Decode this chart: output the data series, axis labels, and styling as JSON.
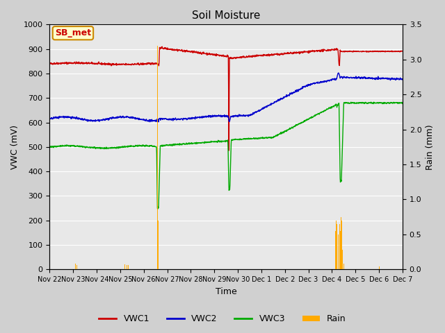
{
  "title": "Soil Moisture",
  "xlabel": "Time",
  "ylabel_left": "VWC (mV)",
  "ylabel_right": "Rain (mm)",
  "ylim_left": [
    0,
    1000
  ],
  "ylim_right": [
    0.0,
    3.5
  ],
  "yticks_left": [
    0,
    100,
    200,
    300,
    400,
    500,
    600,
    700,
    800,
    900,
    1000
  ],
  "yticks_right": [
    0.0,
    0.5,
    1.0,
    1.5,
    2.0,
    2.5,
    3.0,
    3.5
  ],
  "fig_facecolor": "#d8d8d8",
  "plot_bg_color": "#e8e8e8",
  "label_box": "SB_met",
  "label_box_facecolor": "#ffffcc",
  "label_box_edgecolor": "#cc8800",
  "label_box_textcolor": "#cc0000",
  "colors": {
    "VWC1": "#cc0000",
    "VWC2": "#0000cc",
    "VWC3": "#00aa00",
    "Rain": "#ffaa00"
  },
  "xticklabels": [
    "Nov 22",
    "Nov 23",
    "Nov 24",
    "Nov 25",
    "Nov 26",
    "Nov 27",
    "Nov 28",
    "Nov 29",
    "Nov 30",
    "Dec 1",
    "Dec 2",
    "Dec 3",
    "Dec 4",
    "Dec 5",
    "Dec 6",
    "Dec 7"
  ],
  "grid_color": "#ffffff",
  "legend_entries": [
    "VWC1",
    "VWC2",
    "VWC3",
    "Rain"
  ]
}
